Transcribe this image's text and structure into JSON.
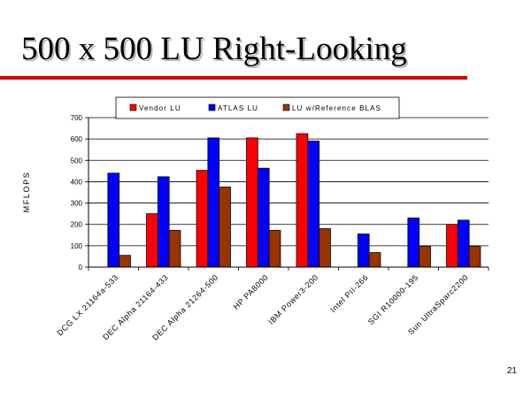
{
  "slide": {
    "title": "500 x 500 LU Right-Looking",
    "page_number": "21"
  },
  "colors": {
    "vendor": "#ff0000",
    "atlas": "#0000ff",
    "reference": "#993300",
    "title_rule": "#d40000"
  },
  "chart_data": {
    "type": "bar",
    "title": "",
    "xlabel": "",
    "ylabel": "MFLOPS",
    "ylim": [
      0,
      700
    ],
    "yticks": [
      0,
      100,
      200,
      300,
      400,
      500,
      600,
      700
    ],
    "grid": true,
    "legend_position": "top",
    "categories": [
      "DCG LX 21164a-533",
      "DEC Alpha 21164-433",
      "DEC Alpha 21264-500",
      "HP PA8000",
      "IBM Power3-200",
      "Intel PII-266",
      "SGI R10000-195",
      "Sun UltraSparc2200"
    ],
    "series": [
      {
        "name": "Vendor LU",
        "color": "#ff0000",
        "values": [
          null,
          250,
          453,
          605,
          625,
          null,
          null,
          200
        ]
      },
      {
        "name": "ATLAS LU",
        "color": "#0000ff",
        "values": [
          440,
          423,
          605,
          463,
          590,
          155,
          230,
          220
        ]
      },
      {
        "name": "LU w/Reference BLAS",
        "color": "#993300",
        "values": [
          55,
          172,
          375,
          172,
          180,
          68,
          98,
          98
        ]
      }
    ]
  }
}
